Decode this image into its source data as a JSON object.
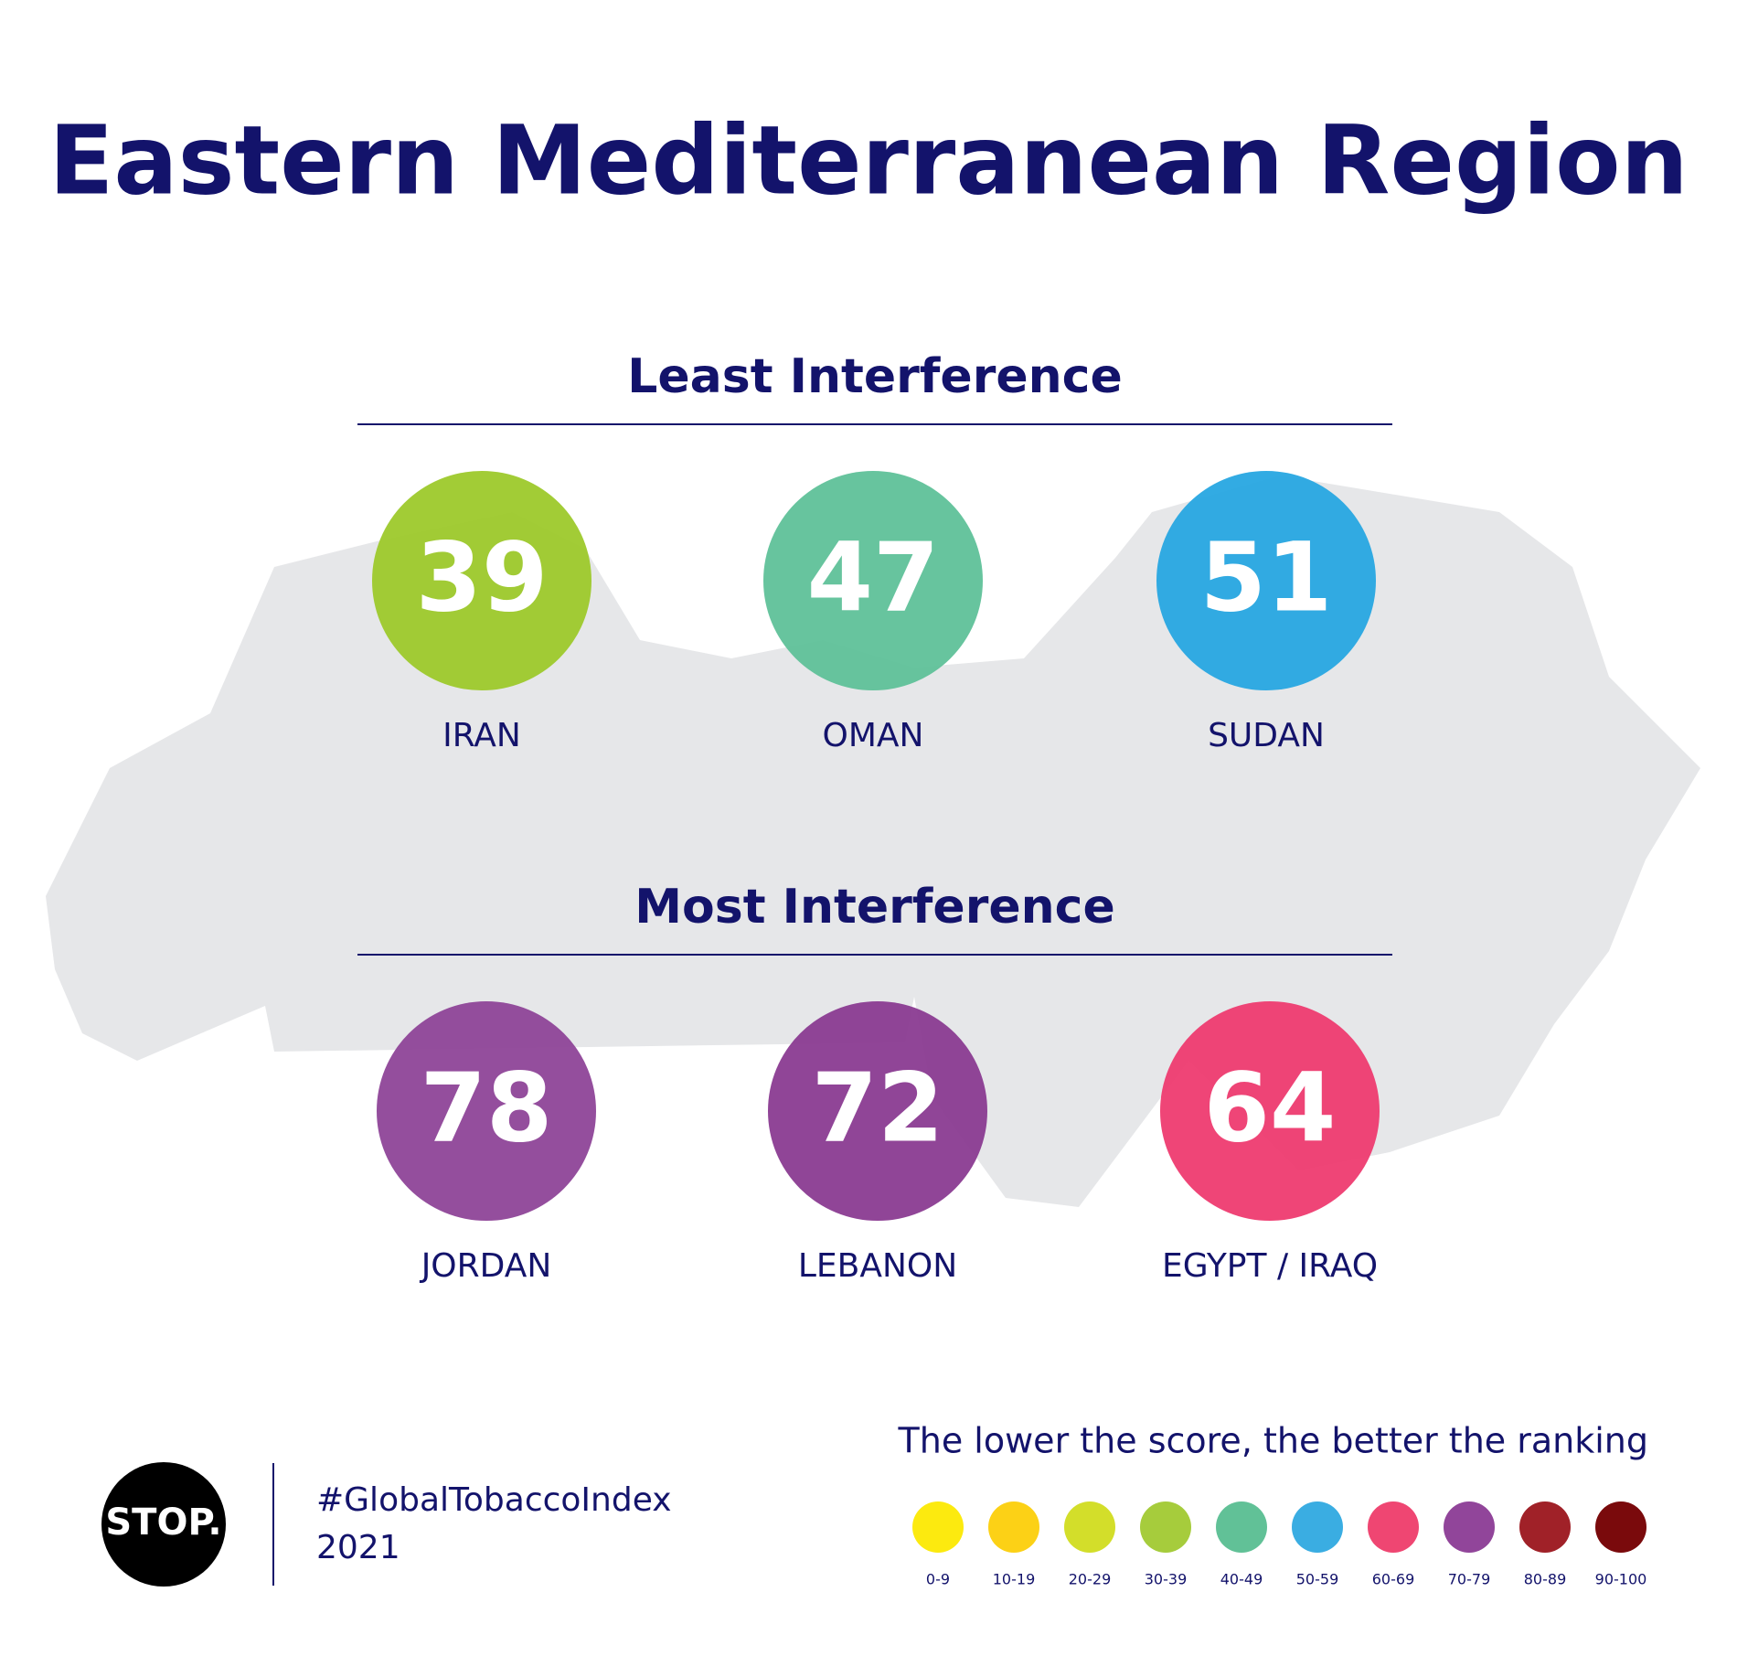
{
  "title": "Eastern Mediterranean Region",
  "sections": [
    {
      "heading": "Least Interference",
      "items": [
        {
          "score": 39,
          "country": "IRAN",
          "color": "#9dc92b"
        },
        {
          "score": 47,
          "country": "OMAN",
          "color": "#5fc199"
        },
        {
          "score": 51,
          "country": "SUDAN",
          "color": "#27a7e1"
        }
      ]
    },
    {
      "heading": "Most Interference",
      "items": [
        {
          "score": 78,
          "country": "JORDAN",
          "color": "#8e4498"
        },
        {
          "score": 72,
          "country": "LEBANON",
          "color": "#8a3b91"
        },
        {
          "score": 64,
          "country": "EGYPT / IRAQ",
          "color": "#ee3b70"
        }
      ]
    }
  ],
  "footer": {
    "logo": "STOP.",
    "hashtag": "#GlobalTobaccoIndex",
    "year": "2021"
  },
  "legend": {
    "title": "The lower the score, the better the ranking",
    "items": [
      {
        "label": "0-9",
        "color": "#fcea0f"
      },
      {
        "label": "10-19",
        "color": "#fcd116"
      },
      {
        "label": "20-29",
        "color": "#d3de2a"
      },
      {
        "label": "30-39",
        "color": "#a6cc3c"
      },
      {
        "label": "40-49",
        "color": "#61c197"
      },
      {
        "label": "50-59",
        "color": "#3aade2"
      },
      {
        "label": "60-69",
        "color": "#ef4672"
      },
      {
        "label": "70-79",
        "color": "#91459a"
      },
      {
        "label": "80-89",
        "color": "#a02128"
      },
      {
        "label": "90-100",
        "color": "#7a0a0c"
      }
    ]
  }
}
